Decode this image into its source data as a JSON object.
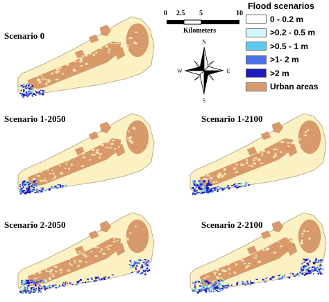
{
  "colors": {
    "land": "#fbf1c2",
    "urban": "#d89a6a",
    "outline": "#b39a7a",
    "flood_0_02": "#ffffff",
    "flood_02_05": "#d4f4fc",
    "flood_05_1": "#5ccbf3",
    "flood_1_2": "#4a72e6",
    "flood_2": "#1c1cbe"
  },
  "panels": [
    {
      "title": "Scenario 0",
      "flood": 1
    },
    {
      "title": "Scenario 1-2050",
      "flood": 2
    },
    {
      "title": "Scenario 1-2100",
      "flood": 3
    },
    {
      "title": "Scenario 2-2050",
      "flood": 4
    },
    {
      "title": "Scenario 2-2100",
      "flood": 5
    }
  ],
  "legend": {
    "title": "Flood scenarios",
    "items": [
      {
        "label": "0 - 0.2 m",
        "color": "#ffffff"
      },
      {
        "label": ">0.2 - 0.5 m",
        "color": "#d4f4fc"
      },
      {
        "label": ">0.5 - 1 m",
        "color": "#5ccbf3"
      },
      {
        "label": ">1- 2 m",
        "color": "#4a72e6"
      },
      {
        "label": ">2 m",
        "color": "#1c1cbe"
      },
      {
        "label": "Urban areas",
        "color": "#d89a6a"
      }
    ]
  },
  "scalebar": {
    "ticks": [
      "0",
      "2.5",
      "5",
      "10"
    ],
    "unit": "Kilometers"
  },
  "compass": {
    "n": "N",
    "s": "S",
    "e": "E",
    "w": "W"
  }
}
